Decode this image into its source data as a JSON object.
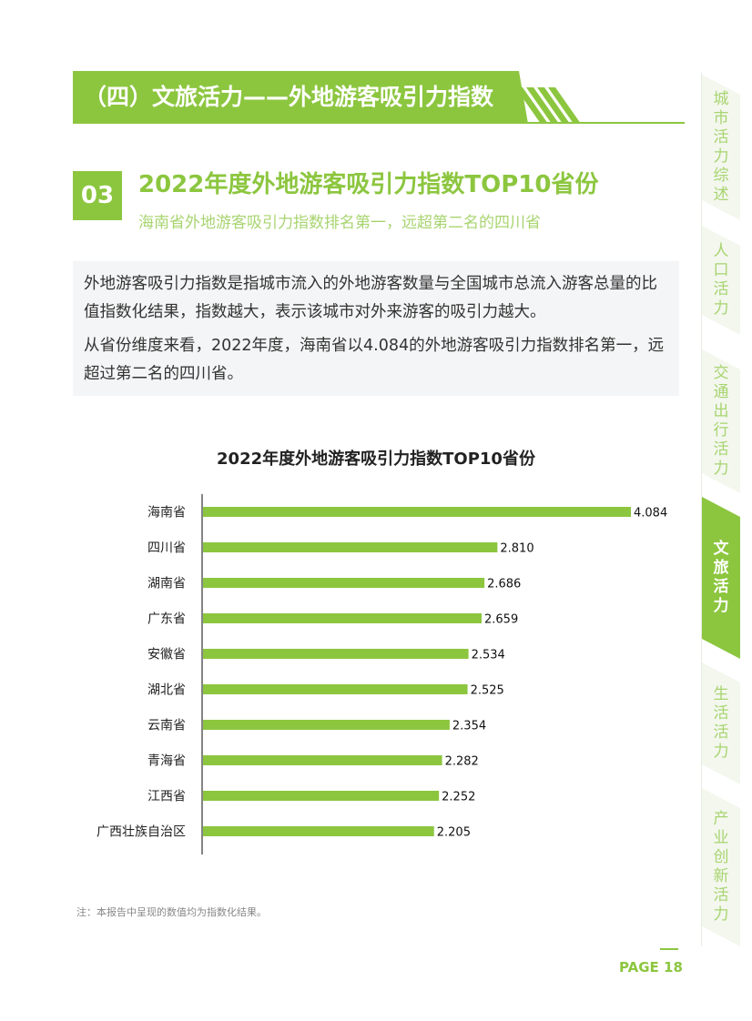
{
  "banner": {
    "title": "（四）文旅活力——外地游客吸引力指数"
  },
  "section": {
    "number": "03",
    "title": "2022年度外地游客吸引力指数TOP10省份",
    "subtitle": "海南省外地游客吸引力指数排名第一，远超第二名的四川省"
  },
  "description": {
    "para1": "外地游客吸引力指数是指城市流入的外地游客数量与全国城市总流入游客总量的比值指数化结果，指数越大，表示该城市对外来游客的吸引力越大。",
    "para2": "从省份维度来看，2022年度，海南省以4.084的外地游客吸引力指数排名第一，远超过第二名的四川省。"
  },
  "chart_data": {
    "type": "bar",
    "orientation": "horizontal",
    "title": "2022年度外地游客吸引力指数TOP10省份",
    "categories": [
      "海南省",
      "四川省",
      "湖南省",
      "广东省",
      "安徽省",
      "湖北省",
      "云南省",
      "青海省",
      "江西省",
      "广西壮族自治区"
    ],
    "values": [
      4.084,
      2.81,
      2.686,
      2.659,
      2.534,
      2.525,
      2.354,
      2.282,
      2.252,
      2.205
    ],
    "value_labels": [
      "4.084",
      "2.810",
      "2.686",
      "2.659",
      "2.534",
      "2.525",
      "2.354",
      "2.282",
      "2.252",
      "2.205"
    ],
    "xlim": [
      0,
      4.084
    ],
    "bar_color": "#8cc63f",
    "grid": false
  },
  "note": "注：本报告中呈现的数值均为指数化结果。",
  "page": {
    "label": "PAGE 18"
  },
  "side_nav": [
    {
      "label": "城市活力综述",
      "active": false
    },
    {
      "label": "人口活力",
      "active": false
    },
    {
      "label": "交通出行活力",
      "active": false
    },
    {
      "label": "文旅活力",
      "active": true
    },
    {
      "label": "生活活力",
      "active": false
    },
    {
      "label": "产业创新活力",
      "active": false
    }
  ],
  "colors": {
    "accent": "#8cc63f",
    "accent_light": "#a8d470",
    "panel_bg": "#f4f5f6"
  }
}
